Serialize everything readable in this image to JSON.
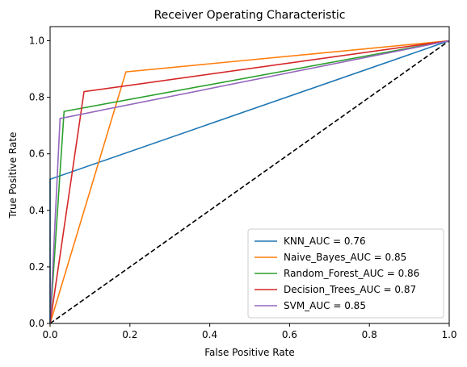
{
  "chart_data": {
    "type": "line",
    "title": "Receiver Operating Characteristic",
    "xlabel": "False Positive Rate",
    "ylabel": "True Positive Rate",
    "xlim": [
      0,
      1
    ],
    "ylim": [
      0,
      1.05
    ],
    "xticks": [
      "0.0",
      "0.2",
      "0.4",
      "0.6",
      "0.8",
      "1.0"
    ],
    "yticks": [
      "0.0",
      "0.2",
      "0.4",
      "0.6",
      "0.8",
      "1.0"
    ],
    "grid": false,
    "legend_position": "bottom-right",
    "series": [
      {
        "name": "KNN_AUC = 0.76",
        "color": "#1f77b4",
        "x": [
          0,
          0,
          1
        ],
        "y": [
          0,
          0.51,
          1
        ]
      },
      {
        "name": "Naive_Bayes_AUC = 0.85",
        "color": "#ff7f0e",
        "x": [
          0,
          0.19,
          1
        ],
        "y": [
          0,
          0.89,
          1
        ]
      },
      {
        "name": "Random_Forest_AUC = 0.86",
        "color": "#2ca02c",
        "x": [
          0,
          0.035,
          1
        ],
        "y": [
          0,
          0.75,
          1
        ]
      },
      {
        "name": "Decision_Trees_AUC = 0.87",
        "color": "#d62728",
        "x": [
          0,
          0.085,
          1
        ],
        "y": [
          0,
          0.82,
          1
        ]
      },
      {
        "name": "SVM_AUC = 0.85",
        "color": "#9467bd",
        "x": [
          0,
          0.025,
          1
        ],
        "y": [
          0,
          0.725,
          1
        ]
      }
    ],
    "reference_line": {
      "style": "dashed",
      "color": "#000000",
      "x": [
        0,
        1
      ],
      "y": [
        0,
        1
      ]
    }
  }
}
